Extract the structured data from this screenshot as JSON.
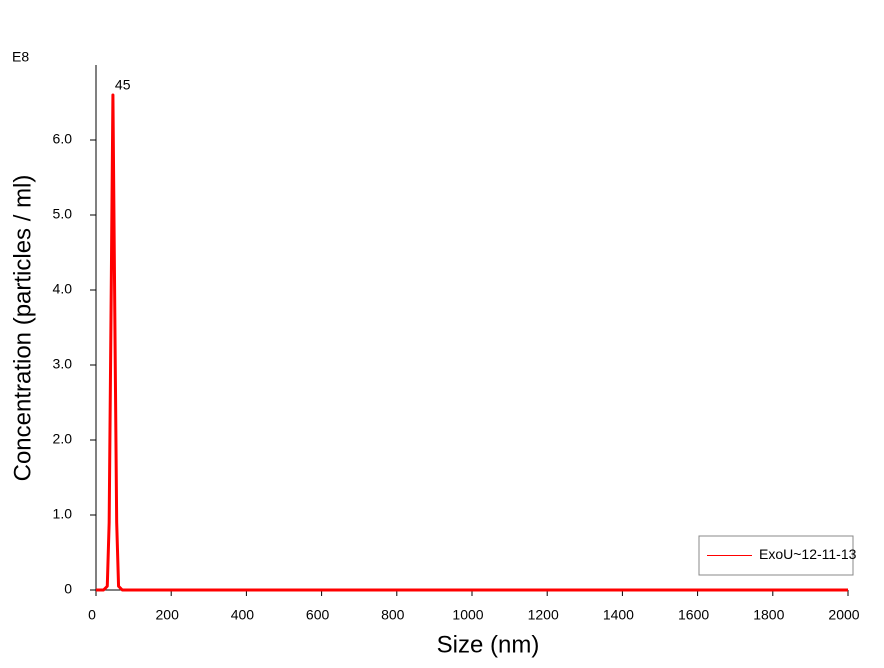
{
  "chart_data": {
    "type": "line",
    "x_label": "Size (nm)",
    "y_label": "Concentration (particles / ml)",
    "y_unit": "E8",
    "x": [
      0,
      10,
      20,
      30,
      35,
      40,
      45,
      50,
      55,
      60,
      70,
      100,
      500,
      1000,
      1500,
      2000
    ],
    "series": [
      {
        "name": "ExoU~12-11-13",
        "color": "#ff0000",
        "values": [
          0,
          0,
          0,
          0.05,
          0.9,
          3.7,
          6.6,
          3.7,
          0.9,
          0.05,
          0,
          0,
          0,
          0,
          0,
          0
        ]
      }
    ],
    "annotations": [
      {
        "text": "45",
        "x": 45,
        "y": 6.6,
        "color": "#0000cc"
      }
    ],
    "xlim": [
      0,
      2000
    ],
    "xticks": [
      0,
      200,
      400,
      600,
      800,
      1000,
      1200,
      1400,
      1600,
      1800,
      2000
    ],
    "ylim": [
      0,
      7
    ],
    "yticks": [
      0,
      {
        "value": 1,
        "label": "1.0"
      },
      {
        "value": 2,
        "label": "2.0"
      },
      {
        "value": 3,
        "label": "3.0"
      },
      {
        "value": 4,
        "label": "4.0"
      },
      {
        "value": 5,
        "label": "5.0"
      },
      {
        "value": 6,
        "label": "6.0"
      }
    ],
    "grid": false,
    "legend": "lower right"
  }
}
